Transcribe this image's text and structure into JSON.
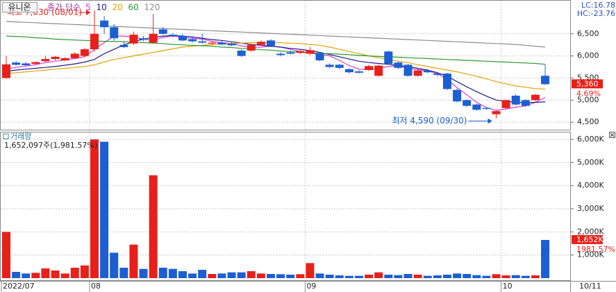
{
  "chart_data": [
    {
      "type": "candlestick",
      "title": "유니온",
      "legend_title": "종가 단순",
      "lc": "LC:16.78",
      "hc": "HC:-23.76",
      "up_color": "#e8201a",
      "down_color": "#1b5fd2",
      "open": [
        5500,
        5850,
        5830,
        5820,
        5880,
        5930,
        5900,
        5950,
        6000,
        6150,
        6800,
        6650,
        6250,
        6280,
        6400,
        6300,
        6600,
        6480,
        6450,
        6380,
        6330,
        6280,
        6300,
        6280,
        6120,
        6120,
        6250,
        6350,
        6050,
        6080,
        6070,
        6050,
        6060,
        5800,
        5800,
        5700,
        5650,
        5680,
        5550,
        6100,
        5850,
        5800,
        5550,
        5670,
        5600,
        5600,
        5230,
        5000,
        4900,
        4820,
        4680,
        4820,
        5100,
        5000,
        5000,
        5550
      ],
      "high": [
        6000,
        5880,
        5860,
        5880,
        6000,
        6000,
        5970,
        6080,
        6180,
        7030,
        6900,
        6720,
        6330,
        6550,
        6450,
        6950,
        6650,
        6520,
        6500,
        6420,
        6500,
        6330,
        6340,
        6310,
        6150,
        6270,
        6350,
        6380,
        6080,
        6120,
        6130,
        6200,
        6080,
        5830,
        5820,
        5720,
        5680,
        5800,
        5800,
        6120,
        5880,
        5820,
        5690,
        5700,
        5620,
        5620,
        5260,
        5020,
        4920,
        4840,
        4770,
        5010,
        5130,
        5020,
        5140,
        5800
      ],
      "low": [
        5480,
        5780,
        5770,
        5800,
        5860,
        5900,
        5880,
        5930,
        5980,
        6100,
        6500,
        6350,
        6180,
        6250,
        6330,
        6280,
        6480,
        6420,
        6330,
        6300,
        6280,
        6250,
        6240,
        6220,
        5980,
        6100,
        6230,
        6200,
        5990,
        6030,
        6040,
        6020,
        5880,
        5730,
        5700,
        5600,
        5600,
        5660,
        5530,
        5800,
        5700,
        5530,
        5530,
        5610,
        5540,
        5230,
        4950,
        4850,
        4760,
        4780,
        4590,
        4800,
        4880,
        4850,
        4980,
        5340
      ],
      "close": [
        5810,
        5800,
        5790,
        5860,
        5930,
        5980,
        5950,
        6050,
        6150,
        6500,
        6650,
        6400,
        6200,
        6480,
        6370,
        6500,
        6500,
        6450,
        6350,
        6330,
        6300,
        6300,
        6260,
        6240,
        6000,
        6250,
        6320,
        6230,
        6020,
        6050,
        6110,
        6130,
        5900,
        5750,
        5730,
        5630,
        5620,
        5770,
        5780,
        5820,
        5730,
        5550,
        5670,
        5630,
        5570,
        5250,
        4970,
        4870,
        4780,
        4800,
        4750,
        5000,
        4900,
        4870,
        5120,
        5360
      ],
      "series": [
        {
          "name": "5",
          "color": "#d639d6",
          "values": [
            5700,
            5740,
            5770,
            5800,
            5850,
            5880,
            5910,
            5940,
            5980,
            6150,
            6300,
            6450,
            6450,
            6420,
            6380,
            6350,
            6420,
            6450,
            6420,
            6400,
            6380,
            6330,
            6300,
            6280,
            6230,
            6190,
            6200,
            6220,
            6200,
            6150,
            6100,
            6060,
            6040,
            6000,
            5900,
            5780,
            5700,
            5690,
            5720,
            5760,
            5780,
            5720,
            5690,
            5660,
            5600,
            5470,
            5280,
            5120,
            4950,
            4830,
            4770,
            4800,
            4840,
            4870,
            4950,
            5060
          ]
        },
        {
          "name": "10",
          "color": "#1a1a8c",
          "values": [
            5650,
            5680,
            5700,
            5720,
            5740,
            5760,
            5790,
            5820,
            5860,
            5920,
            6050,
            6150,
            6250,
            6320,
            6380,
            6420,
            6450,
            6460,
            6450,
            6430,
            6400,
            6370,
            6350,
            6320,
            6290,
            6260,
            6240,
            6220,
            6200,
            6170,
            6150,
            6120,
            6080,
            6030,
            5980,
            5930,
            5880,
            5850,
            5830,
            5810,
            5780,
            5760,
            5720,
            5680,
            5620,
            5540,
            5420,
            5300,
            5190,
            5090,
            5000,
            4970,
            4950,
            4940,
            4950,
            4960
          ]
        },
        {
          "name": "20",
          "color": "#e3a100",
          "values": [
            5600,
            5620,
            5640,
            5660,
            5680,
            5700,
            5720,
            5740,
            5760,
            5800,
            5860,
            5920,
            5960,
            6000,
            6040,
            6080,
            6120,
            6160,
            6200,
            6220,
            6240,
            6260,
            6270,
            6280,
            6290,
            6300,
            6300,
            6300,
            6300,
            6290,
            6280,
            6260,
            6240,
            6200,
            6150,
            6100,
            6050,
            6000,
            5960,
            5920,
            5880,
            5850,
            5800,
            5760,
            5720,
            5680,
            5640,
            5590,
            5540,
            5480,
            5420,
            5370,
            5320,
            5290,
            5260,
            5250
          ]
        },
        {
          "name": "60",
          "color": "#2a9a2a",
          "values": [
            6450,
            6440,
            6430,
            6410,
            6400,
            6380,
            6370,
            6360,
            6350,
            6340,
            6330,
            6330,
            6320,
            6310,
            6300,
            6290,
            6280,
            6260,
            6250,
            6240,
            6230,
            6220,
            6200,
            6190,
            6170,
            6160,
            6140,
            6130,
            6110,
            6100,
            6080,
            6070,
            6060,
            6050,
            6040,
            6030,
            6010,
            6000,
            5990,
            5980,
            5970,
            5960,
            5950,
            5940,
            5930,
            5920,
            5910,
            5900,
            5890,
            5880,
            5870,
            5860,
            5850,
            5840,
            5830,
            5810
          ]
        },
        {
          "name": "120",
          "color": "#8c8c8c",
          "values": [
            6780,
            6770,
            6760,
            6750,
            6740,
            6730,
            6720,
            6710,
            6700,
            6690,
            6680,
            6670,
            6660,
            6650,
            6640,
            6630,
            6620,
            6610,
            6600,
            6590,
            6580,
            6570,
            6560,
            6550,
            6540,
            6530,
            6520,
            6510,
            6500,
            6490,
            6480,
            6470,
            6460,
            6450,
            6440,
            6430,
            6420,
            6410,
            6400,
            6390,
            6380,
            6370,
            6360,
            6350,
            6340,
            6330,
            6320,
            6310,
            6300,
            6290,
            6280,
            6270,
            6260,
            6240,
            6220,
            6200
          ]
        }
      ],
      "ylim": [
        4330,
        7250
      ],
      "yticks": [
        {
          "value": 4500,
          "label": "4,500"
        },
        {
          "value": 5000,
          "label": "5,000"
        },
        {
          "value": 5500,
          "label": "5,500"
        },
        {
          "value": 6000,
          "label": "6,000"
        },
        {
          "value": 6500,
          "label": "6,500"
        }
      ],
      "grid": true,
      "current_price": {
        "value": 5360,
        "label": "5,360"
      },
      "change": "4.69%",
      "annotations": [
        {
          "text": "최고 7,030 (08/01)",
          "index": 9,
          "value": 7030,
          "color": "#e8201a"
        },
        {
          "text": "최저 4,590 (09/30)",
          "index": 50,
          "value": 4590,
          "color": "#1b5fd2"
        }
      ]
    },
    {
      "type": "bar",
      "title": "거래량",
      "subtitle": "1,652,097주(1,981.57%)",
      "categories": [
        "2022/07",
        null,
        null,
        null,
        null,
        null,
        null,
        null,
        null,
        "08",
        null,
        null,
        null,
        null,
        null,
        null,
        null,
        null,
        null,
        null,
        null,
        null,
        null,
        null,
        null,
        null,
        null,
        null,
        null,
        null,
        null,
        "09",
        null,
        null,
        null,
        null,
        null,
        null,
        null,
        null,
        null,
        null,
        null,
        null,
        null,
        null,
        null,
        null,
        null,
        null,
        null,
        "10",
        null,
        null,
        null,
        null
      ],
      "last_date": "10/11",
      "values": [
        2000,
        270,
        200,
        230,
        420,
        330,
        200,
        450,
        550,
        6000,
        5900,
        1100,
        450,
        1450,
        400,
        4450,
        450,
        400,
        300,
        200,
        360,
        180,
        200,
        250,
        250,
        300,
        200,
        180,
        170,
        150,
        170,
        650,
        200,
        150,
        120,
        100,
        100,
        150,
        250,
        150,
        130,
        180,
        150,
        100,
        120,
        150,
        200,
        180,
        130,
        100,
        170,
        120,
        130,
        100,
        120,
        1652
      ],
      "ylim": [
        0,
        6300
      ],
      "yticks": [
        {
          "value": 1000,
          "label": "1,000K"
        },
        {
          "value": 2000,
          "label": "2,000K"
        },
        {
          "value": 3000,
          "label": "3,000K"
        },
        {
          "value": 4000,
          "label": "4,000K"
        },
        {
          "value": 5000,
          "label": "5,000K"
        },
        {
          "value": 6000,
          "label": "6,000K"
        }
      ],
      "grid": true,
      "current_volume": {
        "value": 1652,
        "label": "1,652K"
      },
      "change": "1981.57%"
    }
  ]
}
